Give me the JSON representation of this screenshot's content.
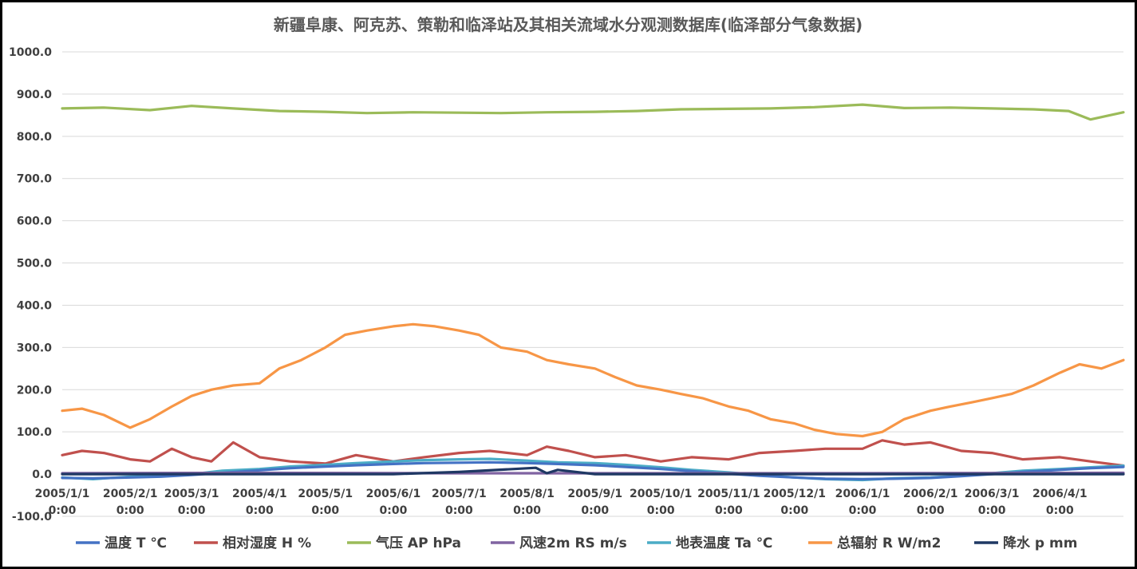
{
  "chart_data": {
    "type": "line",
    "title": "新疆阜康、阿克苏、策勒和临泽站及其相关流域水分观测数据库(临泽部分气象数据)",
    "ylim": [
      -100,
      1000
    ],
    "y_ticks": [
      "-100.0",
      "0.0",
      "100.0",
      "200.0",
      "300.0",
      "400.0",
      "500.0",
      "600.0",
      "700.0",
      "800.0",
      "900.0",
      "1000.0"
    ],
    "x_range": [
      "2005-01-01",
      "2006-04-30"
    ],
    "x_ticks": [
      {
        "date": "2005-01-01",
        "line1": "2005/1/1",
        "line2": "0:00"
      },
      {
        "date": "2005-02-01",
        "line1": "2005/2/1",
        "line2": "0:00"
      },
      {
        "date": "2005-03-01",
        "line1": "2005/3/1",
        "line2": "0:00"
      },
      {
        "date": "2005-04-01",
        "line1": "2005/4/1",
        "line2": "0:00"
      },
      {
        "date": "2005-05-01",
        "line1": "2005/5/1",
        "line2": "0:00"
      },
      {
        "date": "2005-06-01",
        "line1": "2005/6/1",
        "line2": "0:00"
      },
      {
        "date": "2005-07-01",
        "line1": "2005/7/1",
        "line2": "0:00"
      },
      {
        "date": "2005-08-01",
        "line1": "2005/8/1",
        "line2": "0:00"
      },
      {
        "date": "2005-09-01",
        "line1": "2005/9/1",
        "line2": "0:00"
      },
      {
        "date": "2005-10-01",
        "line1": "2005/10/1",
        "line2": "0:00"
      },
      {
        "date": "2005-11-01",
        "line1": "2005/11/1",
        "line2": "0:00"
      },
      {
        "date": "2005-12-01",
        "line1": "2005/12/1",
        "line2": "0:00"
      },
      {
        "date": "2006-01-01",
        "line1": "2006/1/1",
        "line2": "0:00"
      },
      {
        "date": "2006-02-01",
        "line1": "2006/2/1",
        "line2": "0:00"
      },
      {
        "date": "2006-03-01",
        "line1": "2006/3/1",
        "line2": "0:00"
      },
      {
        "date": "2006-04-01",
        "line1": "2006/4/1",
        "line2": "0:00"
      }
    ],
    "grid": true,
    "legend_position": "bottom",
    "series": [
      {
        "name": "温度 T ℃",
        "color": "#4472c4",
        "x": [
          "2005-01-01",
          "2005-01-15",
          "2005-02-01",
          "2005-02-15",
          "2005-03-01",
          "2005-03-15",
          "2005-04-01",
          "2005-04-15",
          "2005-05-01",
          "2005-05-15",
          "2005-06-01",
          "2005-06-15",
          "2005-07-01",
          "2005-07-15",
          "2005-08-01",
          "2005-08-15",
          "2005-09-01",
          "2005-09-15",
          "2005-10-01",
          "2005-10-15",
          "2005-11-01",
          "2005-11-15",
          "2005-12-01",
          "2005-12-15",
          "2006-01-01",
          "2006-01-15",
          "2006-02-01",
          "2006-02-15",
          "2006-03-01",
          "2006-03-15",
          "2006-04-01",
          "2006-04-15",
          "2006-04-30"
        ],
        "y": [
          -9,
          -10,
          -8,
          -6,
          -2,
          3,
          9,
          14,
          18,
          21,
          24,
          26,
          27,
          28,
          26,
          24,
          21,
          17,
          12,
          7,
          1,
          -4,
          -8,
          -11,
          -12,
          -11,
          -9,
          -5,
          0,
          5,
          10,
          14,
          17
        ]
      },
      {
        "name": "相对湿度 H %",
        "color": "#c0504d",
        "x": [
          "2005-01-01",
          "2005-01-10",
          "2005-01-20",
          "2005-02-01",
          "2005-02-10",
          "2005-02-20",
          "2005-03-01",
          "2005-03-10",
          "2005-03-20",
          "2005-04-01",
          "2005-04-15",
          "2005-05-01",
          "2005-05-15",
          "2005-06-01",
          "2005-06-15",
          "2005-07-01",
          "2005-07-15",
          "2005-08-01",
          "2005-08-10",
          "2005-08-20",
          "2005-09-01",
          "2005-09-15",
          "2005-10-01",
          "2005-10-15",
          "2005-11-01",
          "2005-11-15",
          "2005-12-01",
          "2005-12-15",
          "2006-01-01",
          "2006-01-10",
          "2006-01-20",
          "2006-02-01",
          "2006-02-15",
          "2006-03-01",
          "2006-03-15",
          "2006-04-01",
          "2006-04-15",
          "2006-04-30"
        ],
        "y": [
          45,
          55,
          50,
          35,
          30,
          60,
          40,
          30,
          75,
          40,
          30,
          25,
          45,
          30,
          40,
          50,
          55,
          45,
          65,
          55,
          40,
          45,
          30,
          40,
          35,
          50,
          55,
          60,
          60,
          80,
          70,
          75,
          55,
          50,
          35,
          40,
          30,
          20
        ]
      },
      {
        "name": "气压 AP hPa",
        "color": "#9bbb59",
        "x": [
          "2005-01-01",
          "2005-01-20",
          "2005-02-10",
          "2005-03-01",
          "2005-03-20",
          "2005-04-10",
          "2005-05-01",
          "2005-05-20",
          "2005-06-10",
          "2005-07-01",
          "2005-07-20",
          "2005-08-10",
          "2005-09-01",
          "2005-09-20",
          "2005-10-10",
          "2005-11-01",
          "2005-11-20",
          "2005-12-10",
          "2006-01-01",
          "2006-01-20",
          "2006-02-10",
          "2006-03-01",
          "2006-03-20",
          "2006-04-05",
          "2006-04-15",
          "2006-04-30"
        ],
        "y": [
          866,
          868,
          862,
          872,
          866,
          860,
          858,
          855,
          857,
          856,
          855,
          857,
          858,
          860,
          864,
          865,
          866,
          869,
          875,
          867,
          868,
          866,
          864,
          860,
          840,
          857
        ]
      },
      {
        "name": "风速2m RS m/s",
        "color": "#8064a2",
        "x": [
          "2005-01-01",
          "2005-04-01",
          "2005-07-01",
          "2005-10-01",
          "2006-01-01",
          "2006-04-30"
        ],
        "y": [
          2,
          3,
          2,
          2,
          2,
          3
        ]
      },
      {
        "name": "地表温度 Ta ℃",
        "color": "#4bacc6",
        "x": [
          "2005-01-01",
          "2005-01-15",
          "2005-02-01",
          "2005-02-15",
          "2005-03-01",
          "2005-03-15",
          "2005-04-01",
          "2005-04-15",
          "2005-05-01",
          "2005-05-15",
          "2005-06-01",
          "2005-06-15",
          "2005-07-01",
          "2005-07-15",
          "2005-08-01",
          "2005-08-15",
          "2005-09-01",
          "2005-09-15",
          "2005-10-01",
          "2005-10-15",
          "2005-11-01",
          "2005-11-15",
          "2005-12-01",
          "2005-12-15",
          "2006-01-01",
          "2006-01-15",
          "2006-02-01",
          "2006-02-15",
          "2006-03-01",
          "2006-03-15",
          "2006-04-01",
          "2006-04-15",
          "2006-04-30"
        ],
        "y": [
          -8,
          -12,
          -6,
          -4,
          0,
          8,
          12,
          18,
          22,
          26,
          30,
          33,
          35,
          36,
          32,
          28,
          26,
          22,
          16,
          10,
          4,
          -2,
          -8,
          -12,
          -14,
          -10,
          -8,
          -4,
          2,
          8,
          12,
          16,
          20
        ]
      },
      {
        "name": "总辐射 R W/m2",
        "color": "#f79646",
        "x": [
          "2005-01-01",
          "2005-01-10",
          "2005-01-20",
          "2005-02-01",
          "2005-02-10",
          "2005-02-20",
          "2005-03-01",
          "2005-03-10",
          "2005-03-20",
          "2005-04-01",
          "2005-04-10",
          "2005-04-20",
          "2005-05-01",
          "2005-05-10",
          "2005-05-20",
          "2005-06-01",
          "2005-06-10",
          "2005-06-20",
          "2005-07-01",
          "2005-07-10",
          "2005-07-20",
          "2005-08-01",
          "2005-08-10",
          "2005-08-20",
          "2005-09-01",
          "2005-09-10",
          "2005-09-20",
          "2005-10-01",
          "2005-10-10",
          "2005-10-20",
          "2005-11-01",
          "2005-11-10",
          "2005-11-20",
          "2005-12-01",
          "2005-12-10",
          "2005-12-20",
          "2006-01-01",
          "2006-01-10",
          "2006-01-20",
          "2006-02-01",
          "2006-02-10",
          "2006-02-20",
          "2006-03-01",
          "2006-03-10",
          "2006-03-20",
          "2006-04-01",
          "2006-04-10",
          "2006-04-20",
          "2006-04-30"
        ],
        "y": [
          150,
          155,
          140,
          110,
          130,
          160,
          185,
          200,
          210,
          215,
          250,
          270,
          300,
          330,
          340,
          350,
          355,
          350,
          340,
          330,
          300,
          290,
          270,
          260,
          250,
          230,
          210,
          200,
          190,
          180,
          160,
          150,
          130,
          120,
          105,
          95,
          90,
          100,
          130,
          150,
          160,
          170,
          180,
          190,
          210,
          240,
          260,
          250,
          270
        ]
      },
      {
        "name": "降水 p mm",
        "color": "#1f3864",
        "x": [
          "2005-01-01",
          "2005-06-01",
          "2005-07-01",
          "2005-08-05",
          "2005-08-10",
          "2005-08-15",
          "2005-09-01",
          "2005-12-01",
          "2006-04-30"
        ],
        "y": [
          0,
          0,
          5,
          15,
          2,
          10,
          0,
          0,
          0
        ]
      }
    ]
  }
}
